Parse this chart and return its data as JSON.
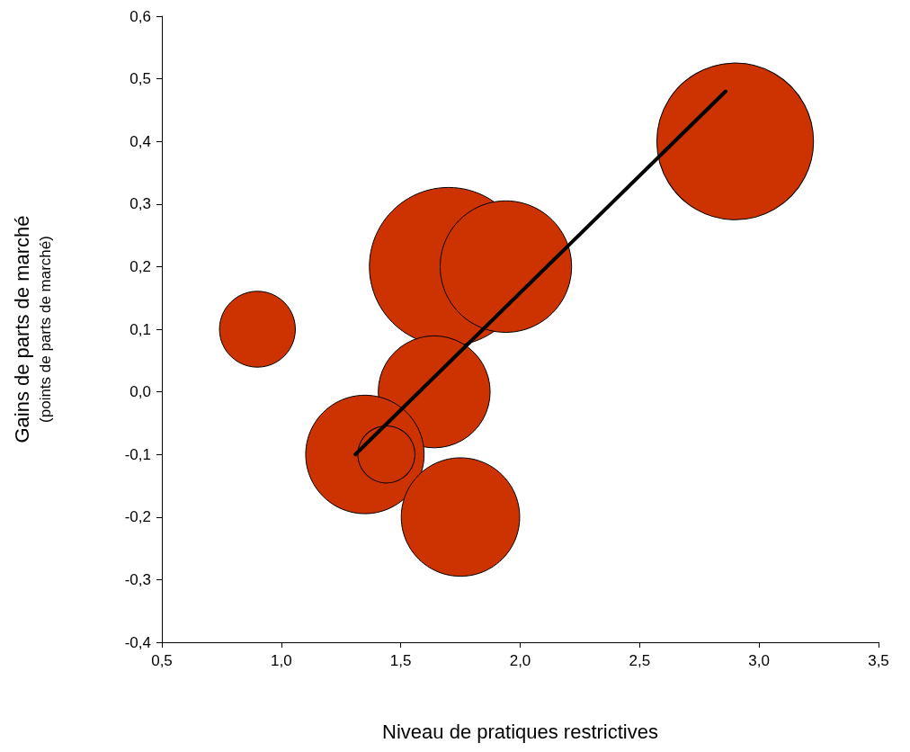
{
  "chart_data": {
    "type": "bubble",
    "xlabel": "Niveau de pratiques restrictives",
    "ylabel": "Gains de parts de marché\n(points de parts de marché)",
    "xlim": [
      0.5,
      3.5
    ],
    "xticks": [
      {
        "value": 0.5,
        "label": "0,5"
      },
      {
        "value": 1.0,
        "label": "1,0"
      },
      {
        "value": 1.5,
        "label": "1,5"
      },
      {
        "value": 2.0,
        "label": "2,0"
      },
      {
        "value": 2.5,
        "label": "2,5"
      },
      {
        "value": 3.0,
        "label": "3,0"
      },
      {
        "value": 3.5,
        "label": "3,5"
      }
    ],
    "ylim": [
      -0.4,
      0.6
    ],
    "yticks": [
      {
        "value": -0.4,
        "label": "-0,4"
      },
      {
        "value": -0.3,
        "label": "-0,3"
      },
      {
        "value": -0.2,
        "label": "-0,2"
      },
      {
        "value": -0.1,
        "label": "-0,1"
      },
      {
        "value": 0,
        "label": "0,0"
      },
      {
        "value": 0.1,
        "label": "0,1"
      },
      {
        "value": 0.2,
        "label": "0,2"
      },
      {
        "value": 0.3,
        "label": "0,3"
      },
      {
        "value": 0.4,
        "label": "0,4"
      },
      {
        "value": 0.5,
        "label": "0,5"
      },
      {
        "value": 0.6,
        "label": "0,6"
      }
    ],
    "grid": false,
    "series": [
      {
        "color": "#cc3300",
        "x": [
          0.9,
          1.7,
          1.94,
          2.9,
          1.64,
          1.35,
          1.44,
          1.75
        ],
        "values": [
          0.1,
          0.2,
          0.2,
          0.4,
          0.0,
          -0.1,
          -0.1,
          -0.2
        ],
        "sizes": [
          0.23,
          1,
          0.69,
          0.98,
          0.5,
          0.56,
          0.13,
          0.56
        ]
      },
      {
        "type": "line",
        "color": "#000000",
        "marker": "none",
        "x": [
          1.31,
          2.86
        ],
        "values": [
          -0.1,
          0.48
        ]
      }
    ]
  }
}
